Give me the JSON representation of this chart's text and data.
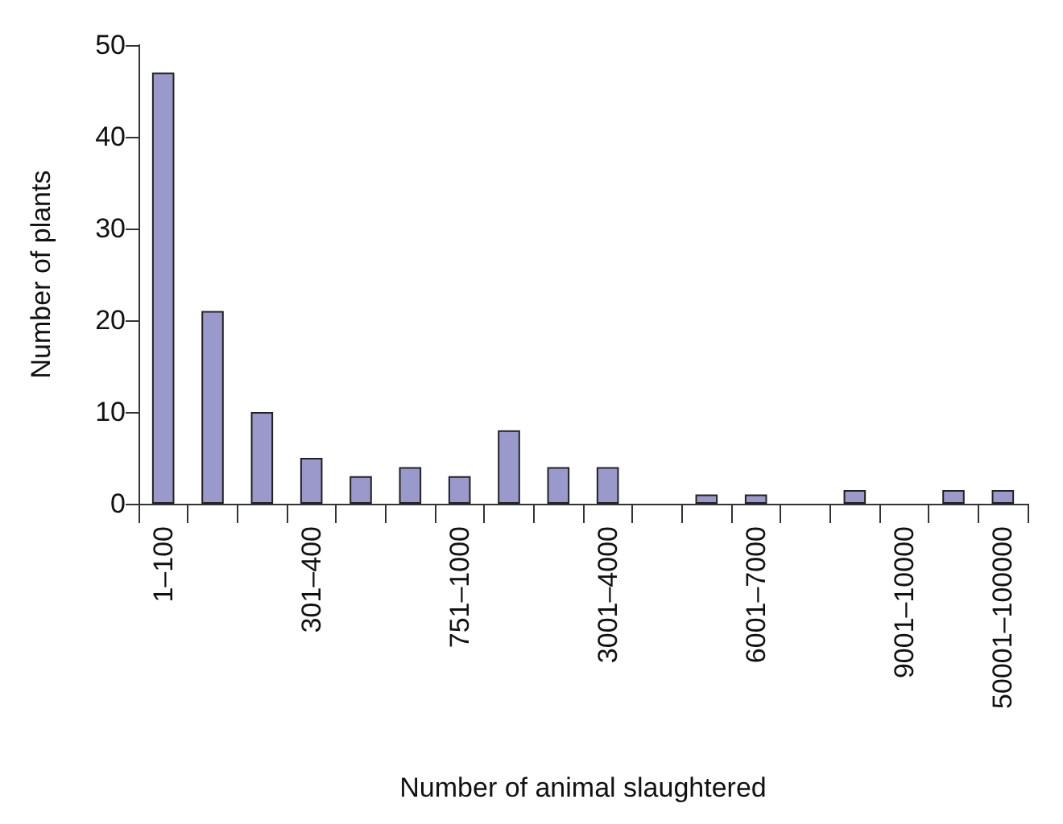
{
  "chart_data": {
    "type": "bar",
    "xlabel": "Number of animal slaughtered",
    "ylabel": "Number of plants",
    "categories": [
      "1–100",
      null,
      null,
      "301–400",
      null,
      null,
      "751–1000",
      null,
      null,
      "3001–4000",
      null,
      null,
      "6001–7000",
      null,
      null,
      "9001–10000",
      null,
      "50001–100000"
    ],
    "values": [
      47,
      21,
      10,
      5,
      3,
      4,
      3,
      8,
      4,
      4,
      0,
      1,
      1,
      0,
      1.5,
      0,
      1.5,
      1.5
    ],
    "color": "#9999cc",
    "ylim": [
      0,
      50
    ],
    "yticks": [
      0,
      10,
      20,
      30,
      40,
      50
    ],
    "grid": false
  }
}
